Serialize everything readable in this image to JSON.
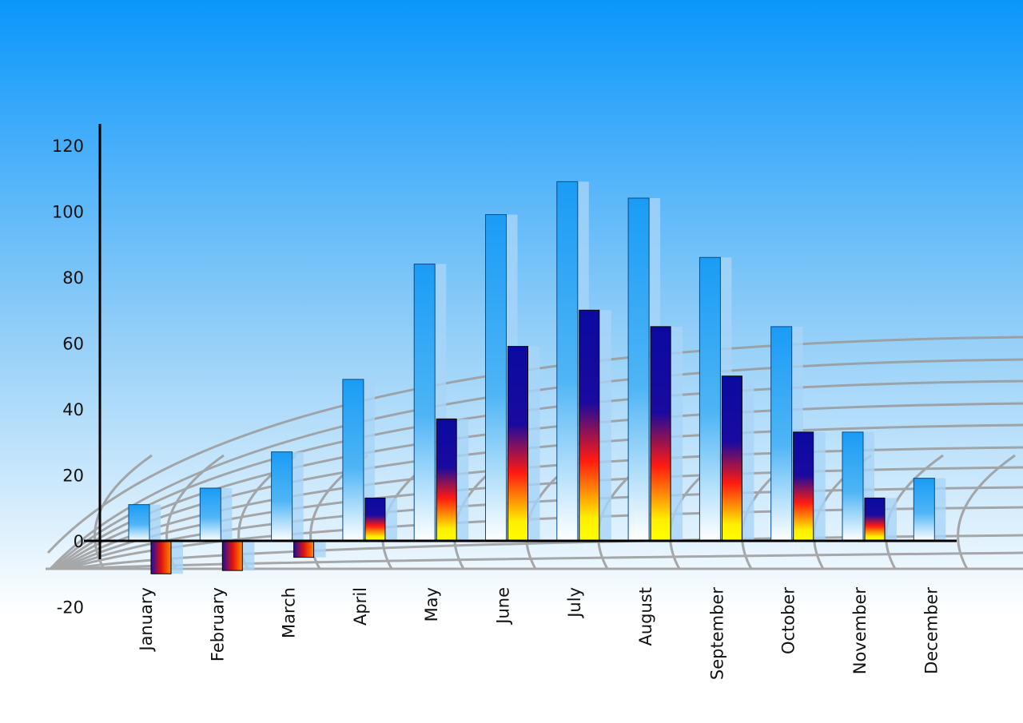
{
  "chart_data": {
    "type": "bar",
    "title": "",
    "xlabel": "",
    "ylabel": "",
    "ylim": [
      -20,
      120
    ],
    "yticks": [
      120,
      100,
      80,
      60,
      40,
      20,
      0,
      -20
    ],
    "categories": [
      "January",
      "February",
      "March",
      "April",
      "May",
      "June",
      "July",
      "August",
      "September",
      "October",
      "November",
      "December"
    ],
    "series": [
      {
        "values": [
          11,
          16,
          27,
          49,
          84,
          99,
          109,
          104,
          86,
          65,
          33,
          19
        ],
        "color": "#1a9cf5"
      },
      {
        "values": [
          -10,
          -9,
          -5,
          13,
          37,
          59,
          70,
          65,
          50,
          33,
          13,
          null
        ],
        "color": "#1010a0"
      }
    ],
    "grid": false,
    "background": [
      "#0a96fb",
      "#ffffff"
    ]
  }
}
